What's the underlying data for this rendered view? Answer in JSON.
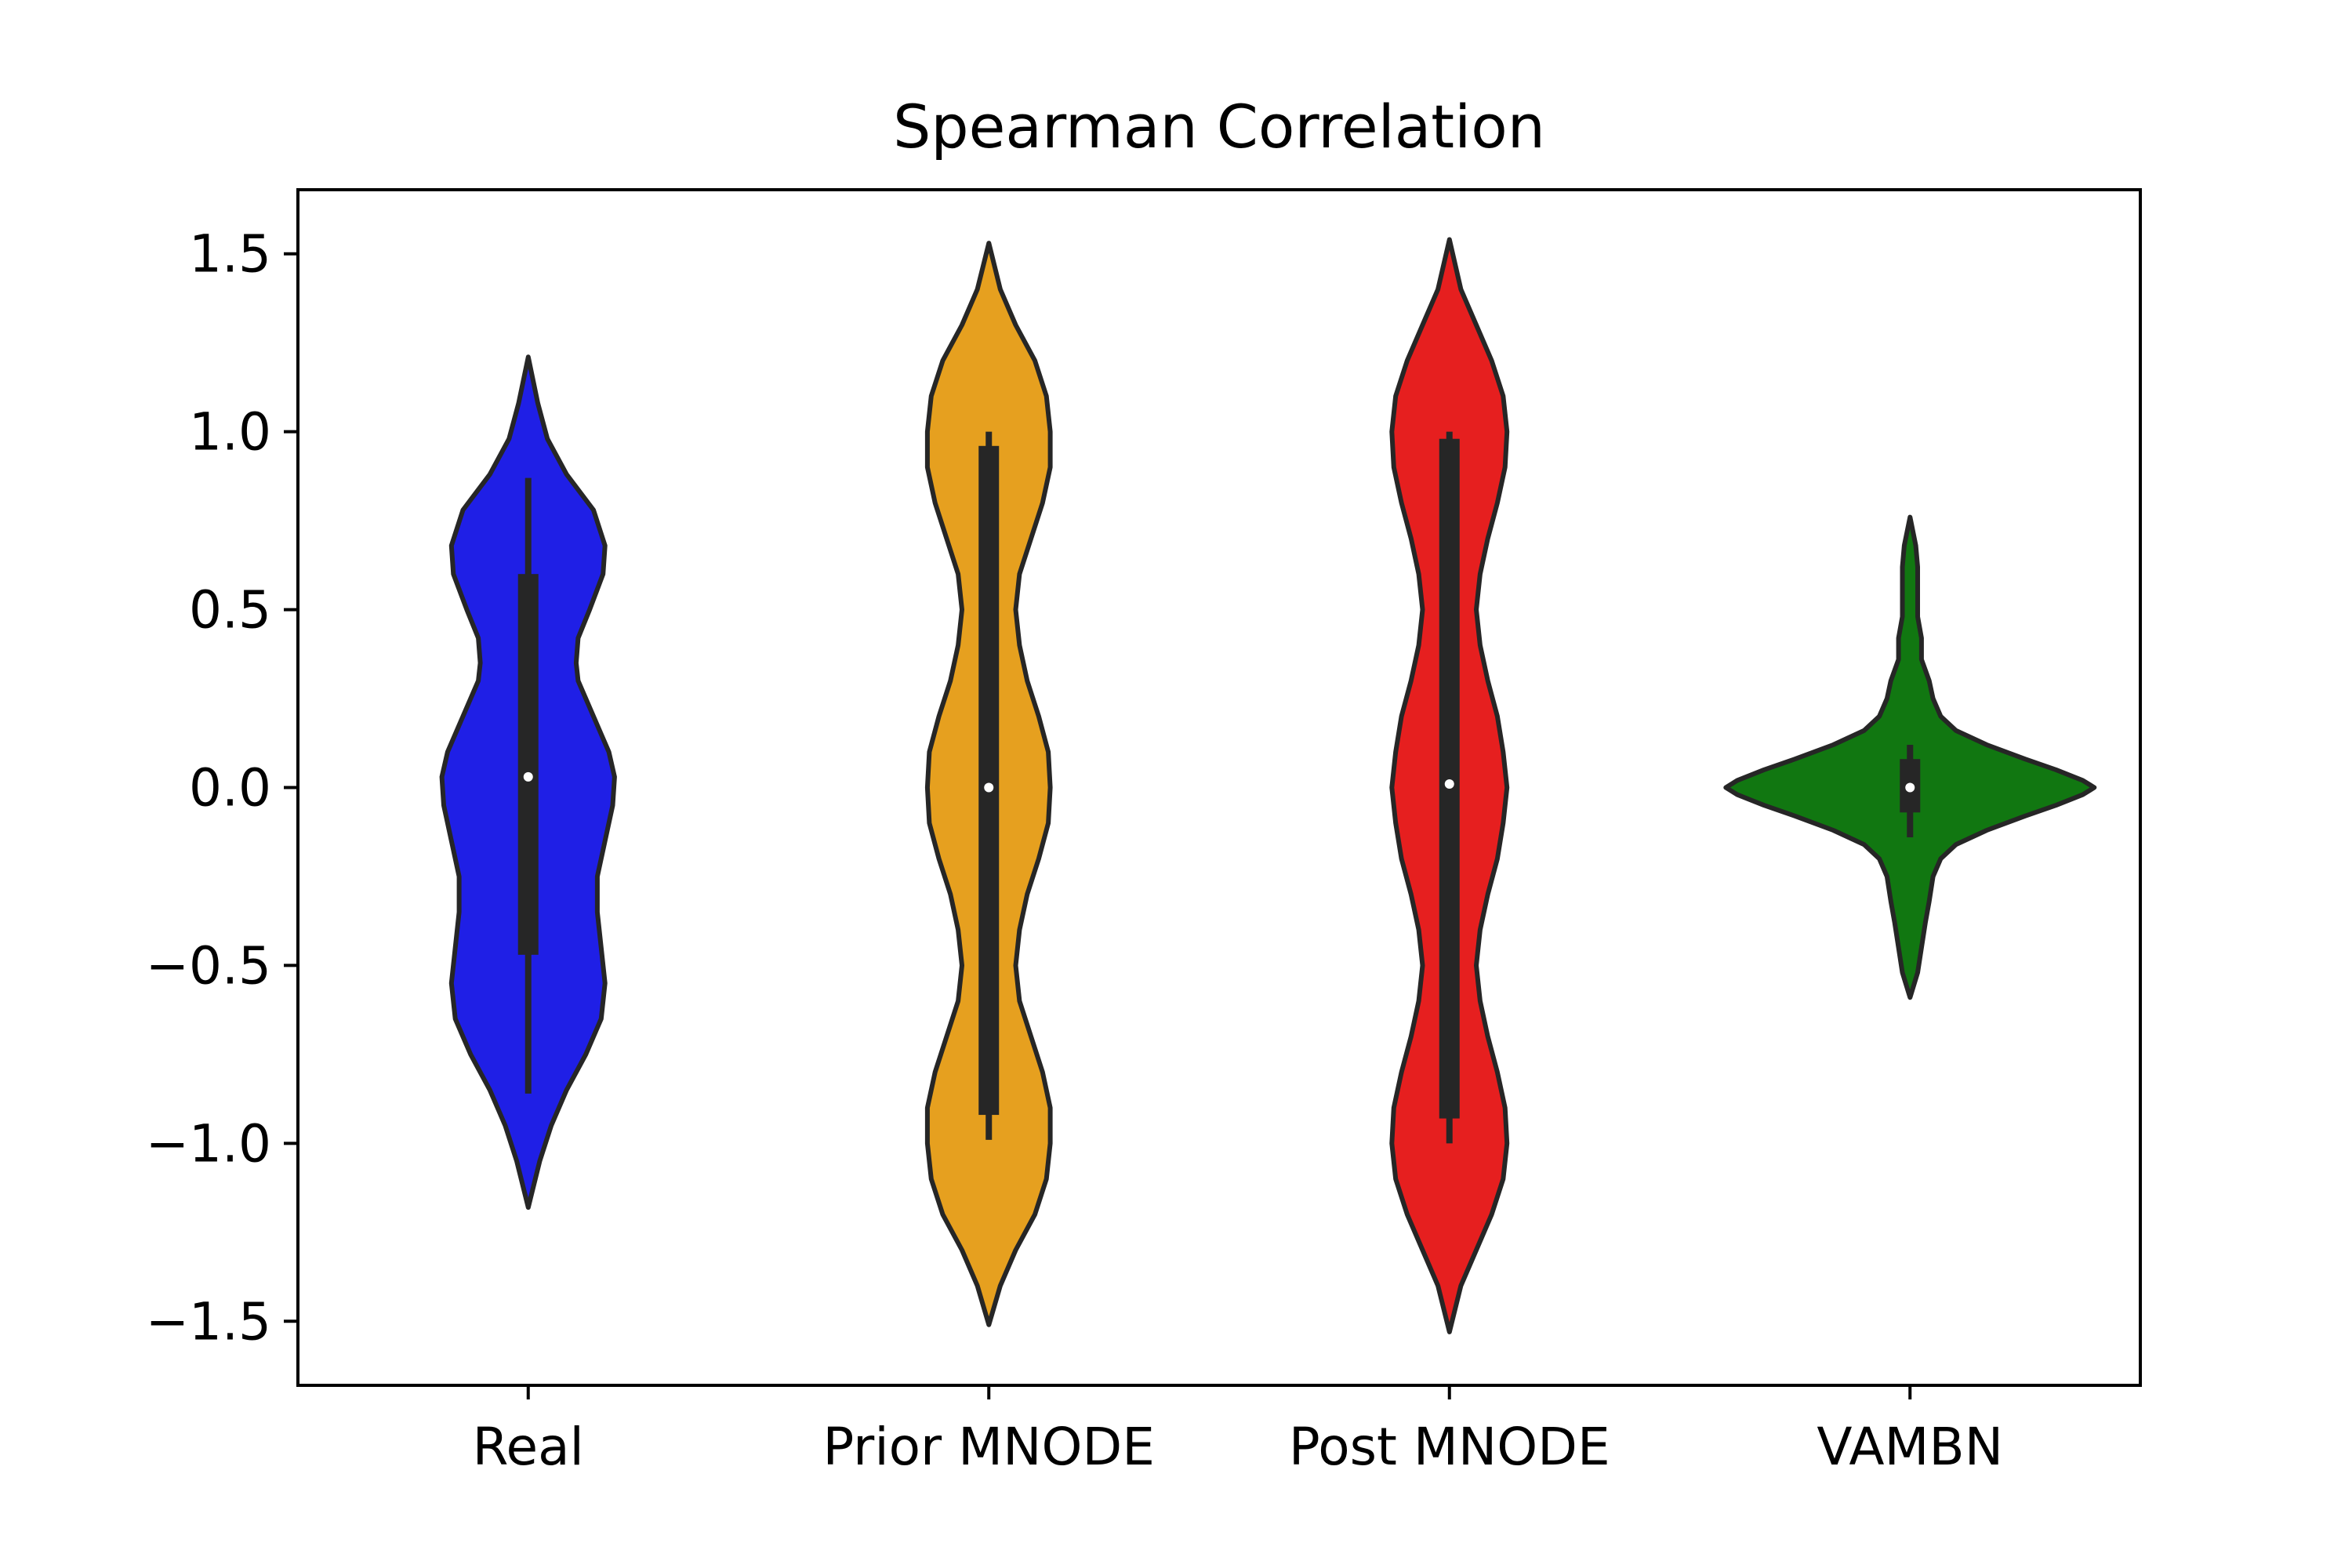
{
  "chart_data": {
    "type": "violin",
    "title": "Spearman Correlation",
    "xlabel": "",
    "ylabel": "",
    "ylim": [
      -1.68,
      1.68
    ],
    "yticks": [
      1.5,
      1.0,
      0.5,
      0.0,
      -0.5,
      -1.0,
      -1.5
    ],
    "ytick_labels": [
      "1.5",
      "1.0",
      "0.5",
      "0.0",
      "−0.5",
      "−1.0",
      "−1.5"
    ],
    "grid": false,
    "legend": "none",
    "categories": [
      "Real",
      "Prior MNODE",
      "Post MNODE",
      "VAMBN"
    ],
    "series": [
      {
        "color": "#1f1fe6",
        "range": [
          -1.18,
          1.21
        ],
        "median": 0.03,
        "q1": -0.47,
        "q3": 0.6,
        "whisker_low": -0.86,
        "whisker_high": 0.87,
        "density": [
          [
            -1.18,
            0.0
          ],
          [
            -1.05,
            0.03
          ],
          [
            -0.95,
            0.06
          ],
          [
            -0.85,
            0.1
          ],
          [
            -0.75,
            0.15
          ],
          [
            -0.65,
            0.19
          ],
          [
            -0.55,
            0.2
          ],
          [
            -0.45,
            0.19
          ],
          [
            -0.35,
            0.18
          ],
          [
            -0.25,
            0.18
          ],
          [
            -0.15,
            0.2
          ],
          [
            -0.05,
            0.22
          ],
          [
            0.03,
            0.225
          ],
          [
            0.1,
            0.21
          ],
          [
            0.2,
            0.17
          ],
          [
            0.3,
            0.13
          ],
          [
            0.35,
            0.125
          ],
          [
            0.42,
            0.13
          ],
          [
            0.5,
            0.16
          ],
          [
            0.6,
            0.195
          ],
          [
            0.68,
            0.2
          ],
          [
            0.78,
            0.17
          ],
          [
            0.88,
            0.1
          ],
          [
            0.98,
            0.05
          ],
          [
            1.08,
            0.025
          ],
          [
            1.21,
            0.0
          ]
        ]
      },
      {
        "color": "#e6a01f",
        "range": [
          -1.51,
          1.53
        ],
        "median": 0.0,
        "q1": -0.92,
        "q3": 0.96,
        "whisker_low": -0.99,
        "whisker_high": 1.0,
        "density": [
          [
            -1.51,
            0.0
          ],
          [
            -1.4,
            0.03
          ],
          [
            -1.3,
            0.07
          ],
          [
            -1.2,
            0.12
          ],
          [
            -1.1,
            0.15
          ],
          [
            -1.0,
            0.16
          ],
          [
            -0.9,
            0.16
          ],
          [
            -0.8,
            0.14
          ],
          [
            -0.7,
            0.11
          ],
          [
            -0.6,
            0.08
          ],
          [
            -0.5,
            0.07
          ],
          [
            -0.4,
            0.08
          ],
          [
            -0.3,
            0.1
          ],
          [
            -0.2,
            0.13
          ],
          [
            -0.1,
            0.155
          ],
          [
            0.0,
            0.16
          ],
          [
            0.1,
            0.155
          ],
          [
            0.2,
            0.13
          ],
          [
            0.3,
            0.1
          ],
          [
            0.4,
            0.08
          ],
          [
            0.5,
            0.07
          ],
          [
            0.6,
            0.08
          ],
          [
            0.7,
            0.11
          ],
          [
            0.8,
            0.14
          ],
          [
            0.9,
            0.16
          ],
          [
            1.0,
            0.16
          ],
          [
            1.1,
            0.15
          ],
          [
            1.2,
            0.12
          ],
          [
            1.3,
            0.07
          ],
          [
            1.4,
            0.03
          ],
          [
            1.53,
            0.0
          ]
        ]
      },
      {
        "color": "#e61f1f",
        "range": [
          -1.53,
          1.54
        ],
        "median": 0.01,
        "q1": -0.93,
        "q3": 0.98,
        "whisker_low": -1.0,
        "whisker_high": 1.0,
        "density": [
          [
            -1.53,
            0.0
          ],
          [
            -1.4,
            0.03
          ],
          [
            -1.3,
            0.07
          ],
          [
            -1.2,
            0.11
          ],
          [
            -1.1,
            0.14
          ],
          [
            -1.0,
            0.15
          ],
          [
            -0.9,
            0.145
          ],
          [
            -0.8,
            0.125
          ],
          [
            -0.7,
            0.1
          ],
          [
            -0.6,
            0.08
          ],
          [
            -0.5,
            0.07
          ],
          [
            -0.4,
            0.08
          ],
          [
            -0.3,
            0.1
          ],
          [
            -0.2,
            0.125
          ],
          [
            -0.1,
            0.14
          ],
          [
            0.0,
            0.15
          ],
          [
            0.1,
            0.14
          ],
          [
            0.2,
            0.125
          ],
          [
            0.3,
            0.1
          ],
          [
            0.4,
            0.08
          ],
          [
            0.5,
            0.07
          ],
          [
            0.6,
            0.08
          ],
          [
            0.7,
            0.1
          ],
          [
            0.8,
            0.125
          ],
          [
            0.9,
            0.145
          ],
          [
            1.0,
            0.15
          ],
          [
            1.1,
            0.14
          ],
          [
            1.2,
            0.11
          ],
          [
            1.3,
            0.07
          ],
          [
            1.4,
            0.03
          ],
          [
            1.54,
            0.0
          ]
        ]
      },
      {
        "color": "#117711",
        "range": [
          -0.59,
          0.76
        ],
        "median": 0.0,
        "q1": -0.07,
        "q3": 0.08,
        "whisker_low": -0.14,
        "whisker_high": 0.12,
        "density": [
          [
            -0.59,
            0.0
          ],
          [
            -0.52,
            0.02
          ],
          [
            -0.45,
            0.03
          ],
          [
            -0.38,
            0.04
          ],
          [
            -0.32,
            0.05
          ],
          [
            -0.25,
            0.06
          ],
          [
            -0.2,
            0.08
          ],
          [
            -0.16,
            0.12
          ],
          [
            -0.12,
            0.2
          ],
          [
            -0.08,
            0.3
          ],
          [
            -0.05,
            0.38
          ],
          [
            -0.02,
            0.45
          ],
          [
            0.0,
            0.48
          ],
          [
            0.02,
            0.45
          ],
          [
            0.05,
            0.38
          ],
          [
            0.08,
            0.3
          ],
          [
            0.12,
            0.2
          ],
          [
            0.16,
            0.12
          ],
          [
            0.2,
            0.08
          ],
          [
            0.25,
            0.06
          ],
          [
            0.3,
            0.05
          ],
          [
            0.36,
            0.03
          ],
          [
            0.42,
            0.03
          ],
          [
            0.48,
            0.02
          ],
          [
            0.55,
            0.02
          ],
          [
            0.62,
            0.02
          ],
          [
            0.68,
            0.015
          ],
          [
            0.76,
            0.0
          ]
        ]
      }
    ]
  }
}
